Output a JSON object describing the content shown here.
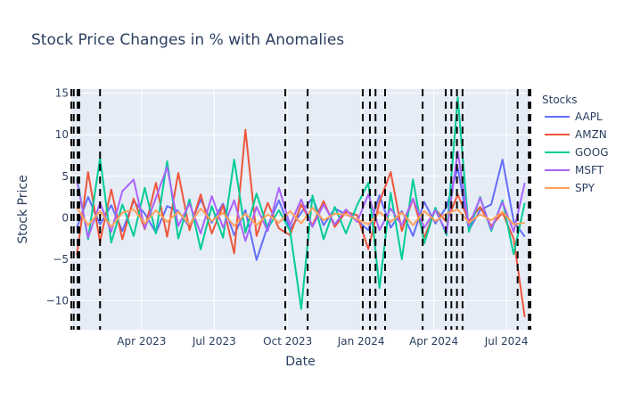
{
  "chart_data": {
    "type": "line",
    "title": "Stock Price Changes in % with Anomalies",
    "xlabel": "Date",
    "ylabel": "Stock Price",
    "legend_title": "Stocks",
    "legend_position": "right",
    "grid": true,
    "x_range": [
      "2023-01-03",
      "2024-07-31"
    ],
    "ylim": [
      -13.5,
      15.5
    ],
    "y_ticks": [
      -10,
      -5,
      0,
      5,
      10,
      15
    ],
    "y_tick_labels": [
      "−10",
      "−5",
      "0",
      "5",
      "10",
      "15"
    ],
    "x_ticks": [
      {
        "date": "2023-04-01",
        "label": "Apr 2023"
      },
      {
        "date": "2023-07-01",
        "label": "Jul 2023"
      },
      {
        "date": "2023-10-01",
        "label": "Oct 2023"
      },
      {
        "date": "2024-01-01",
        "label": "Jan 2024"
      },
      {
        "date": "2024-04-01",
        "label": "Apr 2024"
      },
      {
        "date": "2024-07-01",
        "label": "Jul 2024"
      }
    ],
    "anomaly_dates": [
      "2023-01-03",
      "2023-01-06",
      "2023-01-11",
      "2023-01-13",
      "2023-02-08",
      "2023-09-28",
      "2023-10-26",
      "2024-01-03",
      "2024-01-12",
      "2024-01-19",
      "2024-01-31",
      "2024-03-18",
      "2024-04-16",
      "2024-04-23",
      "2024-04-30",
      "2024-05-07",
      "2024-07-15",
      "2024-07-29",
      "2024-07-31"
    ],
    "series": [
      {
        "name": "AAPL",
        "color": "#636efa",
        "x": [
          "2023-01-10",
          "2023-01-24",
          "2023-02-08",
          "2023-02-22",
          "2023-03-08",
          "2023-03-22",
          "2023-04-05",
          "2023-04-19",
          "2023-05-03",
          "2023-05-17",
          "2023-05-31",
          "2023-06-14",
          "2023-06-28",
          "2023-07-12",
          "2023-07-26",
          "2023-08-09",
          "2023-08-23",
          "2023-09-06",
          "2023-09-20",
          "2023-10-04",
          "2023-10-18",
          "2023-11-01",
          "2023-11-15",
          "2023-11-29",
          "2023-12-13",
          "2023-12-27",
          "2024-01-10",
          "2024-01-24",
          "2024-02-07",
          "2024-02-21",
          "2024-03-06",
          "2024-03-20",
          "2024-04-03",
          "2024-04-17",
          "2024-05-01",
          "2024-05-15",
          "2024-05-29",
          "2024-06-12",
          "2024-06-26",
          "2024-07-10",
          "2024-07-24"
        ],
        "y": [
          -1.2,
          2.5,
          -0.8,
          1.5,
          -1.6,
          2.0,
          0.5,
          -1.8,
          1.4,
          0.8,
          -1.1,
          2.2,
          -0.6,
          1.7,
          -2.1,
          0.9,
          -5.1,
          -1.0,
          2.1,
          -1.4,
          0.6,
          2.4,
          -0.9,
          1.1,
          0.4,
          -0.3,
          -1.5,
          2.7,
          -1.2,
          0.8,
          -2.2,
          1.9,
          -0.7,
          1.3,
          6.0,
          -1.5,
          0.9,
          1.6,
          7.0,
          -0.4,
          -2.3
        ]
      },
      {
        "name": "AMZN",
        "color": "#ef553b",
        "x": [
          "2023-01-10",
          "2023-01-24",
          "2023-02-08",
          "2023-02-22",
          "2023-03-08",
          "2023-03-22",
          "2023-04-05",
          "2023-04-19",
          "2023-05-03",
          "2023-05-17",
          "2023-05-31",
          "2023-06-14",
          "2023-06-28",
          "2023-07-12",
          "2023-07-26",
          "2023-08-09",
          "2023-08-23",
          "2023-09-06",
          "2023-09-20",
          "2023-10-04",
          "2023-10-18",
          "2023-11-01",
          "2023-11-15",
          "2023-11-29",
          "2023-12-13",
          "2023-12-27",
          "2024-01-10",
          "2024-01-24",
          "2024-02-07",
          "2024-02-21",
          "2024-03-06",
          "2024-03-20",
          "2024-04-03",
          "2024-04-17",
          "2024-05-01",
          "2024-05-15",
          "2024-05-29",
          "2024-06-12",
          "2024-06-26",
          "2024-07-10",
          "2024-07-24"
        ],
        "y": [
          -4.5,
          5.5,
          -2.9,
          3.4,
          -2.6,
          2.3,
          -1.4,
          4.2,
          -2.3,
          5.4,
          -1.5,
          2.8,
          -1.9,
          1.5,
          -4.3,
          10.6,
          -2.2,
          1.8,
          -1.3,
          -2.1,
          1.6,
          -0.9,
          2.0,
          -1.1,
          0.7,
          0.3,
          -3.8,
          1.9,
          5.5,
          -1.6,
          2.3,
          -2.4,
          1.0,
          -0.5,
          2.8,
          -0.4,
          1.3,
          -1.0,
          0.6,
          -2.5,
          -12.0
        ]
      },
      {
        "name": "GOOG",
        "color": "#00cc96",
        "x": [
          "2023-01-10",
          "2023-01-24",
          "2023-02-08",
          "2023-02-22",
          "2023-03-08",
          "2023-03-22",
          "2023-04-05",
          "2023-04-19",
          "2023-05-03",
          "2023-05-17",
          "2023-05-31",
          "2023-06-14",
          "2023-06-28",
          "2023-07-12",
          "2023-07-26",
          "2023-08-09",
          "2023-08-23",
          "2023-09-06",
          "2023-09-20",
          "2023-10-04",
          "2023-10-18",
          "2023-11-01",
          "2023-11-15",
          "2023-11-29",
          "2023-12-13",
          "2023-12-27",
          "2024-01-10",
          "2024-01-24",
          "2024-02-07",
          "2024-02-21",
          "2024-03-06",
          "2024-03-20",
          "2024-04-03",
          "2024-04-17",
          "2024-05-01",
          "2024-05-15",
          "2024-05-29",
          "2024-06-12",
          "2024-06-26",
          "2024-07-10",
          "2024-07-24"
        ],
        "y": [
          4.8,
          -2.6,
          7.2,
          -3.0,
          1.6,
          -2.2,
          3.6,
          -1.9,
          6.8,
          -2.5,
          2.2,
          -3.8,
          1.4,
          -2.4,
          7.0,
          -1.8,
          2.9,
          -1.3,
          0.9,
          -1.6,
          -11.0,
          2.7,
          -2.6,
          1.3,
          -1.9,
          1.5,
          4.2,
          -8.5,
          3.0,
          -5.0,
          4.6,
          -3.1,
          1.2,
          -2.1,
          14.5,
          -1.7,
          2.5,
          -1.6,
          2.1,
          -4.4,
          1.8
        ]
      },
      {
        "name": "MSFT",
        "color": "#ab63fa",
        "x": [
          "2023-01-10",
          "2023-01-24",
          "2023-02-08",
          "2023-02-22",
          "2023-03-08",
          "2023-03-22",
          "2023-04-05",
          "2023-04-19",
          "2023-05-03",
          "2023-05-17",
          "2023-05-31",
          "2023-06-14",
          "2023-06-28",
          "2023-07-12",
          "2023-07-26",
          "2023-08-09",
          "2023-08-23",
          "2023-09-06",
          "2023-09-20",
          "2023-10-04",
          "2023-10-18",
          "2023-11-01",
          "2023-11-15",
          "2023-11-29",
          "2023-12-13",
          "2023-12-27",
          "2024-01-10",
          "2024-01-24",
          "2024-02-07",
          "2024-02-21",
          "2024-03-06",
          "2024-03-20",
          "2024-04-03",
          "2024-04-17",
          "2024-05-01",
          "2024-05-15",
          "2024-05-29",
          "2024-06-12",
          "2024-06-26",
          "2024-07-10",
          "2024-07-24"
        ],
        "y": [
          4.5,
          -2.4,
          1.8,
          -1.7,
          3.2,
          4.6,
          -1.3,
          2.4,
          6.1,
          -1.0,
          1.7,
          -1.9,
          2.6,
          -1.2,
          2.1,
          -2.8,
          1.3,
          -1.6,
          3.6,
          -0.9,
          2.2,
          -1.1,
          1.6,
          -0.8,
          1.0,
          -0.5,
          2.8,
          -1.5,
          1.1,
          -0.9,
          2.3,
          -1.2,
          0.9,
          -1.8,
          8.0,
          -1.0,
          2.4,
          -1.4,
          1.9,
          -1.7,
          4.2
        ]
      },
      {
        "name": "SPY",
        "color": "#ffa15a",
        "x": [
          "2023-01-10",
          "2023-01-24",
          "2023-02-08",
          "2023-02-22",
          "2023-03-08",
          "2023-03-22",
          "2023-04-05",
          "2023-04-19",
          "2023-05-03",
          "2023-05-17",
          "2023-05-31",
          "2023-06-14",
          "2023-06-28",
          "2023-07-12",
          "2023-07-26",
          "2023-08-09",
          "2023-08-23",
          "2023-09-06",
          "2023-09-20",
          "2023-10-04",
          "2023-10-18",
          "2023-11-01",
          "2023-11-15",
          "2023-11-29",
          "2023-12-13",
          "2023-12-27",
          "2024-01-10",
          "2024-01-24",
          "2024-02-07",
          "2024-02-21",
          "2024-03-06",
          "2024-03-20",
          "2024-04-03",
          "2024-04-17",
          "2024-05-01",
          "2024-05-15",
          "2024-05-29",
          "2024-06-12",
          "2024-06-26",
          "2024-07-10",
          "2024-07-24"
        ],
        "y": [
          1.2,
          -0.9,
          0.8,
          -1.1,
          0.6,
          1.0,
          -0.7,
          0.9,
          -0.5,
          0.7,
          -0.8,
          1.1,
          -0.4,
          0.6,
          -1.0,
          0.5,
          -0.9,
          0.4,
          -0.6,
          0.8,
          -0.7,
          1.2,
          -0.3,
          0.5,
          0.4,
          -0.2,
          -0.8,
          0.7,
          -0.5,
          0.6,
          -0.9,
          0.8,
          -0.4,
          0.5,
          1.0,
          -0.6,
          0.4,
          -0.3,
          0.7,
          -0.8,
          -0.6
        ]
      }
    ]
  }
}
